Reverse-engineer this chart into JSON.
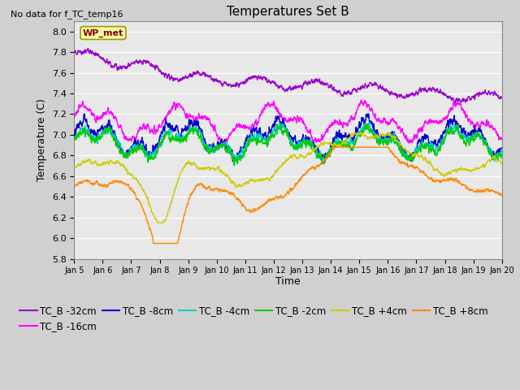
{
  "title": "Temperatures Set B",
  "subtitle": "No data for f_TC_temp16",
  "xlabel": "Time",
  "ylabel": "Temperature (C)",
  "ylim": [
    5.8,
    8.1
  ],
  "yticks": [
    5.8,
    6.0,
    6.2,
    6.4,
    6.6,
    6.8,
    7.0,
    7.2,
    7.4,
    7.6,
    7.8,
    8.0
  ],
  "xtick_labels": [
    "Jan 5",
    "Jan 6",
    "Jan 7",
    "Jan 8",
    "Jan 9",
    "Jan 10",
    "Jan 11",
    "Jan 12",
    "Jan 13",
    "Jan 14",
    "Jan 15",
    "Jan 16",
    "Jan 17",
    "Jan 18",
    "Jan 19",
    "Jan 20"
  ],
  "series_colors": {
    "TC_B -32cm": "#9900cc",
    "TC_B -16cm": "#ff00ff",
    "TC_B -8cm": "#0000cc",
    "TC_B -4cm": "#00cccc",
    "TC_B -2cm": "#00cc00",
    "TC_B +4cm": "#cccc00",
    "TC_B +8cm": "#ff8800"
  },
  "fig_bg": "#d0d0d0",
  "plot_bg": "#e8e8e8",
  "grid_color": "#ffffff",
  "wp_met_box_color": "#ffffaa",
  "wp_met_text_color": "#880000",
  "wp_met_edge_color": "#999900"
}
